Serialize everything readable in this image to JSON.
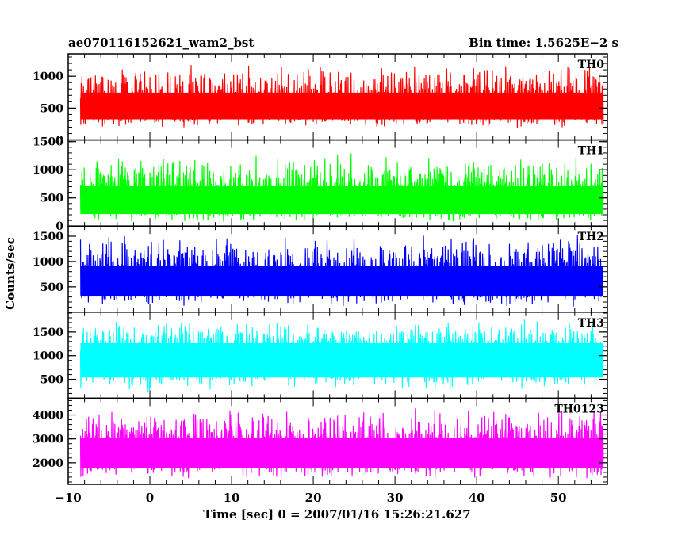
{
  "header": {
    "left_title": "ae070116152621_wam2_bst",
    "right_title": "Bin time: 1.5625E−2 s"
  },
  "axes": {
    "xlabel": "Time [sec] 0 = 2007/01/16 15:26:21.627",
    "ylabel": "Counts/sec"
  },
  "chart_data": {
    "type": "line",
    "x_range": [
      -10,
      56
    ],
    "x_ticks": [
      -10,
      0,
      10,
      20,
      30,
      40,
      50
    ],
    "x_tick_labels": [
      "−10",
      "0",
      "10",
      "20",
      "30",
      "40",
      "50"
    ],
    "data_x_range": [
      -8.5,
      55.5
    ],
    "panels": [
      {
        "name": "TH0",
        "color": "#ff0000",
        "ylim": [
          0,
          1350
        ],
        "yticks": [
          0,
          500,
          1000
        ],
        "ytick_labels": [
          "0",
          "500",
          "1000"
        ],
        "minor_step": 100,
        "mean": 550,
        "noise_min": 140,
        "noise_max": 1320
      },
      {
        "name": "TH1",
        "color": "#00ff00",
        "ylim": [
          0,
          1530
        ],
        "yticks": [
          0,
          500,
          1000,
          1500
        ],
        "ytick_labels": [
          "0",
          "500",
          "1000",
          "1500"
        ],
        "minor_step": 100,
        "mean": 450,
        "noise_min": 20,
        "noise_max": 1480
      },
      {
        "name": "TH2",
        "color": "#0000ff",
        "ylim": [
          0,
          1700
        ],
        "yticks": [
          500,
          1000,
          1500
        ],
        "ytick_labels": [
          "500",
          "1000",
          "1500"
        ],
        "minor_step": 100,
        "mean": 650,
        "noise_min": 30,
        "noise_max": 1680
      },
      {
        "name": "TH3",
        "color": "#00ffff",
        "ylim": [
          100,
          1920
        ],
        "yticks": [
          500,
          1000,
          1500
        ],
        "ytick_labels": [
          "500",
          "1000",
          "1500"
        ],
        "minor_step": 100,
        "mean": 1050,
        "noise_min": 120,
        "noise_max": 1900
      },
      {
        "name": "TH0123",
        "color": "#ff00ff",
        "ylim": [
          1100,
          4700
        ],
        "yticks": [
          2000,
          3000,
          4000
        ],
        "ytick_labels": [
          "2000",
          "3000",
          "4000"
        ],
        "minor_step": 200,
        "mean": 2500,
        "noise_min": 1180,
        "noise_max": 4650
      }
    ]
  }
}
